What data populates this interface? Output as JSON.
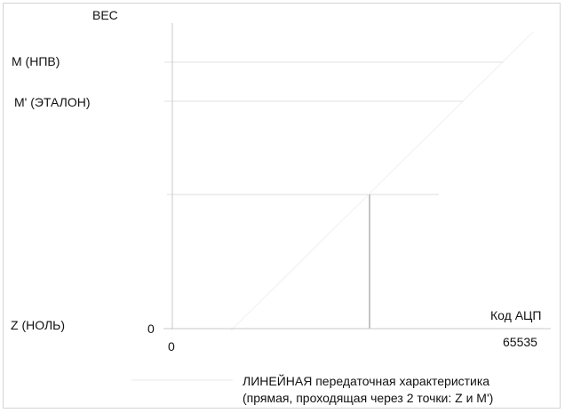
{
  "diagram": {
    "y_axis_label": "ВЕС",
    "x_axis_label": "Код АЦП",
    "levels": {
      "max_label": "M  (НПВ)",
      "ref_label": "M'  (ЭТАЛОН)",
      "zero_label": "Z  (НОЛЬ)"
    },
    "origin_y_tick": "0",
    "origin_x_tick": "0",
    "x_max_tick": "65535",
    "legend": {
      "line1": "ЛИНЕЙНАЯ передаточная характеристика",
      "line2": "(прямая, проходящая через 2 точки: Z и M')"
    },
    "colors": {
      "axis": "#c8c8c8",
      "guide": "#e2e2e2",
      "projection": "#8a8a8a",
      "characteristic": "#f0f0f0",
      "text": "#111111"
    }
  }
}
